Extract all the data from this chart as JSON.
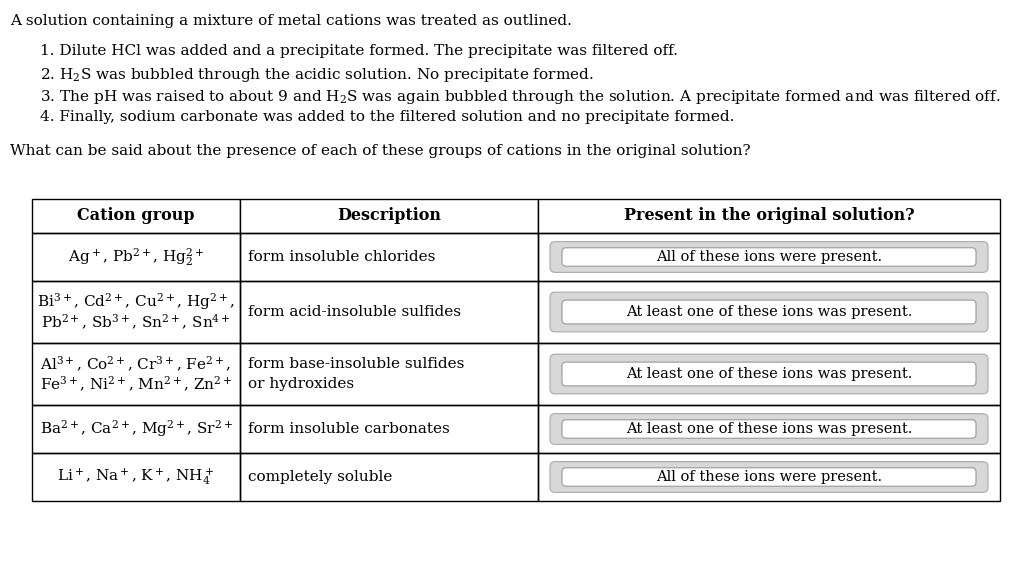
{
  "bg_color": "#ffffff",
  "title_text": "A solution containing a mixture of metal cations was treated as outlined.",
  "items": [
    "1. Dilute HCl was added and a precipitate formed. The precipitate was filtered off.",
    "2. H$_2$S was bubbled through the acidic solution. No precipitate formed.",
    "3. The pH was raised to about 9 and H$_2$S was again bubbled through the solution. A precipitate formed and was filtered off.",
    "4. Finally, sodium carbonate was added to the filtered solution and no precipitate formed."
  ],
  "question": "What can be said about the presence of each of these groups of cations in the original solution?",
  "col_headers": [
    "Cation group",
    "Description",
    "Present in the original solution?"
  ],
  "rows": [
    {
      "cation_lines": [
        "Ag$^+$, Pb$^{2+}$, Hg$_2^{2+}$"
      ],
      "desc_lines": [
        "form insoluble chlorides"
      ],
      "answer": "All of these ions were present."
    },
    {
      "cation_lines": [
        "Bi$^{3+}$, Cd$^{2+}$, Cu$^{2+}$, Hg$^{2+}$,",
        "Pb$^{2+}$, Sb$^{3+}$, Sn$^{2+}$, Sn$^{4+}$"
      ],
      "desc_lines": [
        "form acid-insoluble sulfides"
      ],
      "answer": "At least one of these ions was present."
    },
    {
      "cation_lines": [
        "Al$^{3+}$, Co$^{2+}$, Cr$^{3+}$, Fe$^{2+}$,",
        "Fe$^{3+}$, Ni$^{2+}$, Mn$^{2+}$, Zn$^{2+}$"
      ],
      "desc_lines": [
        "form base-insoluble sulfides",
        "or hydroxides"
      ],
      "answer": "At least one of these ions was present."
    },
    {
      "cation_lines": [
        "Ba$^{2+}$, Ca$^{2+}$, Mg$^{2+}$, Sr$^{2+}$"
      ],
      "desc_lines": [
        "form insoluble carbonates"
      ],
      "answer": "At least one of these ions was present."
    },
    {
      "cation_lines": [
        "Li$^+$, Na$^+$, K$^+$, NH$_4^+$"
      ],
      "desc_lines": [
        "completely soluble"
      ],
      "answer": "All of these ions were present."
    }
  ],
  "font_size": 11.0,
  "header_font_size": 11.5,
  "body_font_size": 11.0,
  "answer_font_size": 10.5
}
